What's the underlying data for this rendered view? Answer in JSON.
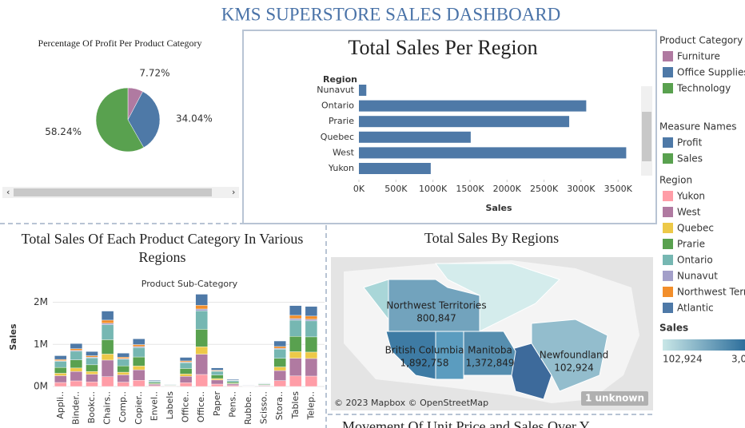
{
  "title": "KMS SUPERSTORE SALES DASHBOARD",
  "chart_data": [
    {
      "type": "pie",
      "title": "Percentage Of Profit Per Product Category",
      "categories": [
        "Furniture",
        "Office Supplies",
        "Technology"
      ],
      "values": [
        7.72,
        34.04,
        58.24
      ],
      "value_labels": [
        "7.72%",
        "34.04%",
        "58.24%"
      ],
      "colors": [
        "#b07aa1",
        "#4e79a7",
        "#59a14f"
      ],
      "legend_title": "Product Category"
    },
    {
      "type": "hbar",
      "title": "Total Sales Per Region",
      "y_label": "Region",
      "x_label": "Sales",
      "categories": [
        "Nunavut",
        "Ontario",
        "Prarie",
        "Quebec",
        "West",
        "Yukon"
      ],
      "values": [
        100000,
        3070000,
        2840000,
        1510000,
        3610000,
        970000
      ],
      "color": "#4e79a7",
      "xlim": [
        0,
        3800000
      ],
      "xticks": [
        {
          "value": 0,
          "label": "0K"
        },
        {
          "value": 500000,
          "label": "500K"
        },
        {
          "value": 1000000,
          "label": "1000K"
        },
        {
          "value": 1500000,
          "label": "1500K"
        },
        {
          "value": 2000000,
          "label": "2000K"
        },
        {
          "value": 2500000,
          "label": "2500K"
        },
        {
          "value": 3000000,
          "label": "3000K"
        },
        {
          "value": 3500000,
          "label": "3500K"
        }
      ]
    },
    {
      "type": "stacked_bar",
      "title": "Total Sales Of Each Product Category In Various Regions",
      "subtitle": "Product Sub-Category",
      "y_label": "Sales",
      "categories": [
        "Appli..",
        "Binder..",
        "Bookc..",
        "Chairs..",
        "Comp..",
        "Copier..",
        "Envel..",
        "Labels",
        "Office..",
        "Office..",
        "Paper",
        "Pens..",
        "Rubbe..",
        "Scisso..",
        "Stora..",
        "Tables",
        "Telep.."
      ],
      "ylim": [
        0,
        2200000
      ],
      "yticks": [
        {
          "value": 0,
          "label": "0M"
        },
        {
          "value": 1000000,
          "label": "1M"
        },
        {
          "value": 2000000,
          "label": "2M"
        }
      ],
      "legend_title": "Region",
      "series": [
        {
          "name": "Yukon",
          "color": "#ff9da7",
          "values": [
            95000,
            133000,
            108000,
            233000,
            103000,
            147000,
            20000,
            7000,
            90000,
            285000,
            57000,
            22000,
            4000,
            10000,
            140000,
            250000,
            247000
          ]
        },
        {
          "name": "West",
          "color": "#b07aa1",
          "values": [
            161000,
            224000,
            183000,
            394000,
            174000,
            249000,
            33000,
            11000,
            152000,
            482000,
            97000,
            37000,
            7000,
            18000,
            238000,
            422000,
            418000
          ]
        },
        {
          "name": "Quebec",
          "color": "#edc948",
          "values": [
            58000,
            82000,
            66000,
            143000,
            63000,
            90000,
            12000,
            4000,
            55000,
            175000,
            35000,
            14000,
            2000,
            6000,
            86000,
            154000,
            152000
          ]
        },
        {
          "name": "Prarie",
          "color": "#59a14f",
          "values": [
            139000,
            194000,
            158000,
            340000,
            150000,
            215000,
            29000,
            10000,
            131000,
            416000,
            84000,
            32000,
            6000,
            15000,
            205000,
            365000,
            361000
          ]
        },
        {
          "name": "Ontario",
          "color": "#76b7b2",
          "values": [
            146000,
            204000,
            166000,
            358000,
            158000,
            226000,
            30000,
            10000,
            138000,
            438000,
            88000,
            34000,
            6000,
            16000,
            216000,
            384000,
            380000
          ]
        },
        {
          "name": "Nunavut",
          "color": "#a39fc9",
          "values": [
            15000,
            20000,
            17000,
            36000,
            16000,
            23000,
            3000,
            1000,
            14000,
            44000,
            9000,
            3000,
            1000,
            2000,
            22000,
            38000,
            38000
          ]
        },
        {
          "name": "Northwest Territories",
          "color": "#f28e2b",
          "values": [
            29000,
            41000,
            33000,
            72000,
            32000,
            45000,
            6000,
            2000,
            28000,
            88000,
            18000,
            7000,
            1000,
            3000,
            43000,
            77000,
            76000
          ]
        },
        {
          "name": "Atlantic",
          "color": "#4e79a7",
          "values": [
            88000,
            122000,
            100000,
            215000,
            95000,
            136000,
            18000,
            6000,
            83000,
            263000,
            53000,
            20000,
            4000,
            10000,
            130000,
            230000,
            228000
          ]
        }
      ]
    },
    {
      "type": "map",
      "title": "Total Sales By Regions",
      "categories": [
        "Northwest Territories",
        "British Columbia",
        "Manitoba",
        "Newfoundland"
      ],
      "values": [
        800847,
        1892758,
        1372849,
        102924
      ],
      "value_labels": [
        "800,847",
        "1,892,758",
        "1,372,849",
        "102,924"
      ],
      "colors": [
        "#c9e7e7",
        "#2e6f9c"
      ],
      "legend_title": "Sales",
      "legend_labels": [
        "102,924",
        "3,0"
      ],
      "attribution": "© 2023 Mapbox © OpenStreetMap",
      "badge": "1 unknown"
    },
    {
      "type": "line",
      "title": "Movement Of Unit Price and Sales Over Y"
    }
  ],
  "measure_legend": {
    "title": "Measure Names",
    "items": [
      "Profit",
      "Sales"
    ],
    "colors": [
      "#4e79a7",
      "#59a14f"
    ]
  }
}
